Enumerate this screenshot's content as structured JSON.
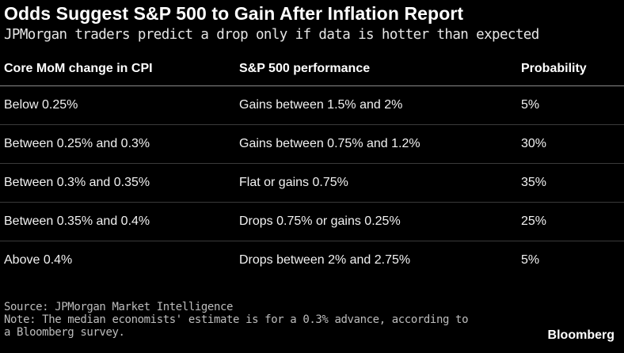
{
  "title": "Odds Suggest S&P 500 to Gain After Inflation Report",
  "subtitle": "JPMorgan traders predict a drop only if data is hotter than expected",
  "chart_data": {
    "type": "table",
    "title": "Odds Suggest S&P 500 to Gain After Inflation Report",
    "subtitle": "JPMorgan traders predict a drop only if data is hotter than expected",
    "columns": [
      "Core MoM change in CPI",
      "S&P 500 performance",
      "Probability"
    ],
    "rows": [
      [
        "Below 0.25%",
        "Gains between 1.5% and 2%",
        "5%"
      ],
      [
        "Between 0.25% and 0.3%",
        "Gains between 0.75% and 1.2%",
        "30%"
      ],
      [
        "Between 0.3% and 0.35%",
        "Flat or gains 0.75%",
        "35%"
      ],
      [
        "Between 0.35% and 0.4%",
        "Drops 0.75% or gains 0.25%",
        "25%"
      ],
      [
        "Above 0.4%",
        "Drops between 2% and 2.75%",
        "5%"
      ]
    ]
  },
  "footer": {
    "source": "Source: JPMorgan Market Intelligence",
    "note_line1": "Note: The median economists' estimate is for a 0.3% advance, according to",
    "note_line2": "a Bloomberg survey."
  },
  "brand": "Bloomberg",
  "colors": {
    "background": "#000000",
    "text": "#ffffff",
    "footer_text": "#bdbdbd",
    "divider": "#3a3a3a"
  }
}
